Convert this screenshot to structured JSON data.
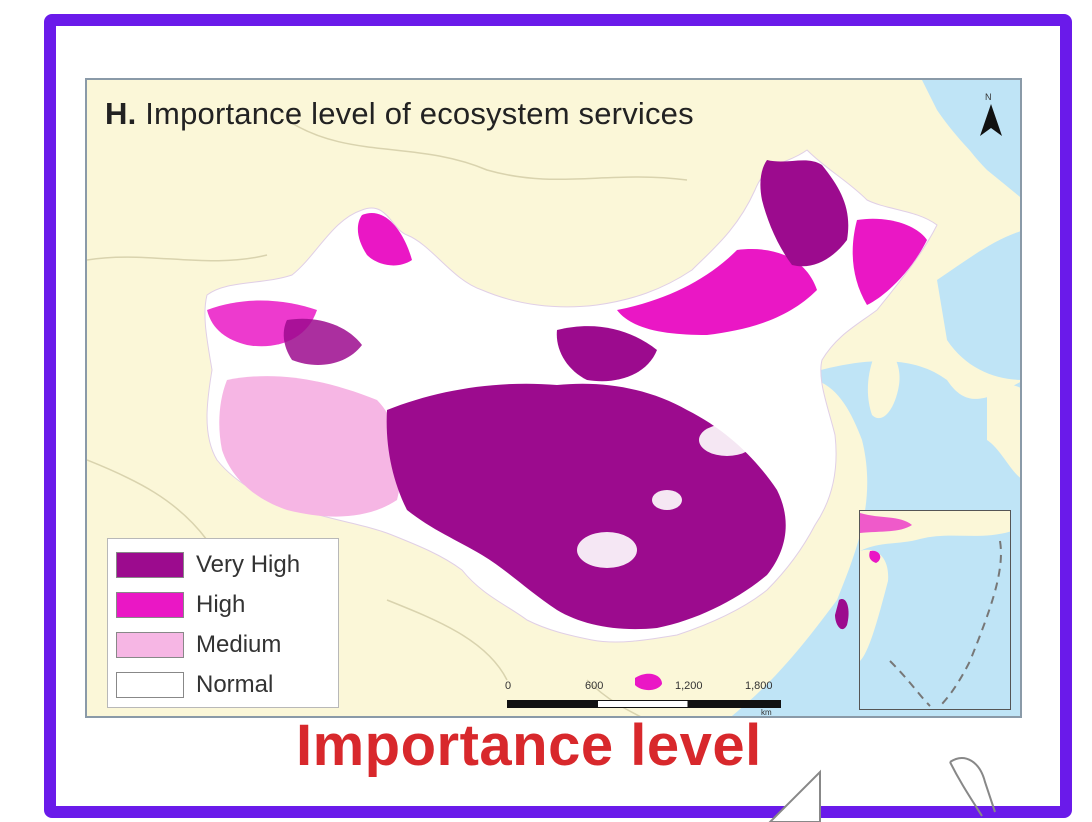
{
  "map": {
    "title_prefix": "H.",
    "title": "Importance level of ecosystem services",
    "north_label": "N",
    "legend": {
      "items": [
        {
          "label": "Very High",
          "color": "#9c0b8e"
        },
        {
          "label": "High",
          "color": "#ea17c5"
        },
        {
          "label": "Medium",
          "color": "#f6b6e4"
        },
        {
          "label": "Normal",
          "color": "#ffffff"
        }
      ]
    },
    "scale": {
      "ticks": [
        "0",
        "600",
        "1,200",
        "1,800"
      ],
      "unit": "km"
    },
    "colors": {
      "water": "#bfe4f6",
      "land": "#fbf7d8",
      "frame": "#6a1aea"
    }
  },
  "caption": "Importance level",
  "caption_color": "#d8282c"
}
